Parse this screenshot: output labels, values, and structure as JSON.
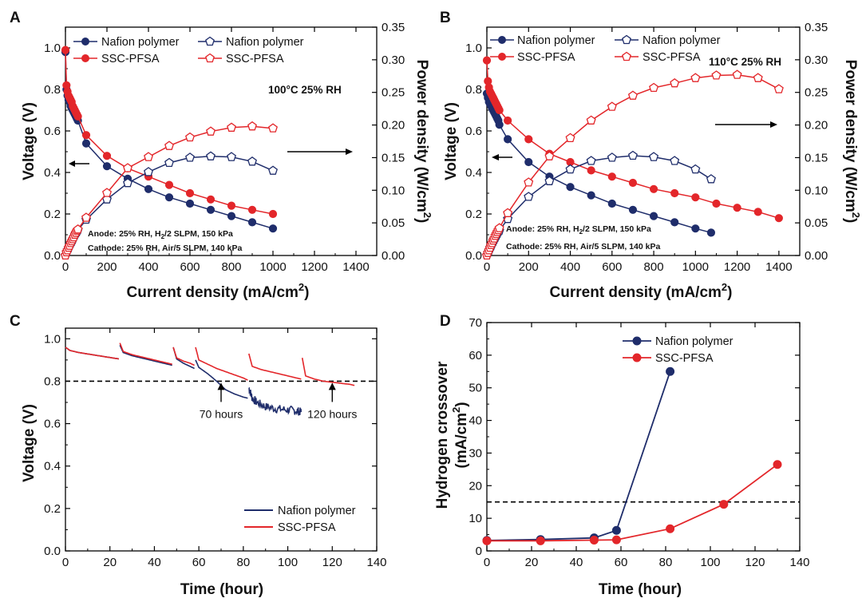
{
  "colors": {
    "nafion": "#1f2d6b",
    "ssc": "#e3262a",
    "axis": "#000000"
  },
  "chart_data": [
    {
      "panel": "A",
      "type": "line",
      "xlabel": "Current density (mA/cm",
      "xlabel_sup": "2",
      "xlabel_end": ")",
      "ylabel": "Voltage (V)",
      "y2label": "Power density (W/cm",
      "y2label_sup": "2",
      "y2label_end": ")",
      "xlim": [
        0,
        1500
      ],
      "ylim": [
        0,
        1.1
      ],
      "y2lim": [
        0,
        0.35
      ],
      "xticks": [
        "0",
        "200",
        "400",
        "600",
        "800",
        "1000",
        "1200",
        "1400"
      ],
      "yticks": [
        "0.0",
        "0.2",
        "0.4",
        "0.6",
        "0.8",
        "1.0"
      ],
      "y2ticks": [
        "0.00",
        "0.05",
        "0.10",
        "0.15",
        "0.20",
        "0.25",
        "0.30",
        "0.35"
      ],
      "condition": "100°C 25% RH",
      "note_anode": "Anode: 25% RH, H",
      "note_anode_sub": "2",
      "note_anode_end": "/2 SLPM, 150 kPa",
      "note_cathode": "Cathode: 25% RH, Air/5 SLPM, 140 kPa",
      "legend": {
        "voltage_nafion": "Nafion polymer",
        "voltage_ssc": "SSC-PFSA",
        "power_nafion": "Nafion polymer",
        "power_ssc": "SSC-PFSA"
      },
      "series": [
        {
          "name": "Nafion polymer",
          "kind": "voltage",
          "x": [
            0,
            5,
            10,
            15,
            20,
            25,
            30,
            35,
            40,
            45,
            50,
            55,
            60,
            100,
            200,
            300,
            400,
            500,
            600,
            700,
            800,
            900,
            1000
          ],
          "values": [
            0.98,
            0.8,
            0.77,
            0.75,
            0.74,
            0.72,
            0.71,
            0.7,
            0.69,
            0.68,
            0.67,
            0.66,
            0.65,
            0.54,
            0.43,
            0.37,
            0.32,
            0.28,
            0.25,
            0.22,
            0.19,
            0.16,
            0.13
          ]
        },
        {
          "name": "SSC-PFSA",
          "kind": "voltage",
          "x": [
            0,
            5,
            10,
            15,
            20,
            25,
            30,
            35,
            40,
            45,
            50,
            55,
            60,
            100,
            200,
            300,
            400,
            500,
            600,
            700,
            800,
            900,
            1000
          ],
          "values": [
            0.99,
            0.82,
            0.79,
            0.77,
            0.76,
            0.75,
            0.74,
            0.72,
            0.71,
            0.7,
            0.69,
            0.68,
            0.67,
            0.58,
            0.48,
            0.42,
            0.38,
            0.34,
            0.3,
            0.27,
            0.24,
            0.22,
            0.2
          ]
        },
        {
          "name": "Nafion polymer",
          "kind": "power",
          "x": [
            0,
            5,
            10,
            15,
            20,
            25,
            30,
            35,
            40,
            45,
            50,
            55,
            60,
            100,
            200,
            300,
            400,
            500,
            600,
            700,
            800,
            900,
            1000
          ],
          "values": [
            0.0,
            0.005,
            0.008,
            0.011,
            0.015,
            0.018,
            0.021,
            0.024,
            0.028,
            0.031,
            0.034,
            0.036,
            0.039,
            0.055,
            0.086,
            0.111,
            0.128,
            0.142,
            0.15,
            0.152,
            0.151,
            0.144,
            0.13
          ]
        },
        {
          "name": "SSC-PFSA",
          "kind": "power",
          "x": [
            0,
            5,
            10,
            15,
            20,
            25,
            30,
            35,
            40,
            45,
            50,
            55,
            60,
            100,
            200,
            300,
            400,
            500,
            600,
            700,
            800,
            900,
            1000
          ],
          "values": [
            0.0,
            0.005,
            0.008,
            0.012,
            0.015,
            0.019,
            0.022,
            0.025,
            0.028,
            0.032,
            0.035,
            0.038,
            0.04,
            0.058,
            0.096,
            0.134,
            0.151,
            0.168,
            0.181,
            0.19,
            0.196,
            0.198,
            0.195
          ]
        }
      ]
    },
    {
      "panel": "B",
      "type": "line",
      "xlabel": "Current density (mA/cm",
      "xlabel_sup": "2",
      "xlabel_end": ")",
      "ylabel": "Voltage (V)",
      "y2label": "Power density (W/cm",
      "y2label_sup": "2",
      "y2label_end": ")",
      "xlim": [
        0,
        1500
      ],
      "ylim": [
        0,
        1.1
      ],
      "y2lim": [
        0,
        0.35
      ],
      "xticks": [
        "0",
        "200",
        "400",
        "600",
        "800",
        "1000",
        "1200",
        "1400"
      ],
      "yticks": [
        "0.0",
        "0.2",
        "0.4",
        "0.6",
        "0.8",
        "1.0"
      ],
      "y2ticks": [
        "0.00",
        "0.05",
        "0.10",
        "0.15",
        "0.20",
        "0.25",
        "0.30",
        "0.35"
      ],
      "condition": "110°C 25% RH",
      "note_anode": "Anode: 25% RH, H",
      "note_anode_sub": "2",
      "note_anode_end": "/2 SLPM, 150 kPa",
      "note_cathode": "Cathode: 25% RH, Air/5 SLPM, 140 kPa",
      "legend": {
        "voltage_nafion": "Nafion polymer",
        "voltage_ssc": "SSC-PFSA",
        "power_nafion": "Nafion polymer",
        "power_ssc": "SSC-PFSA"
      },
      "series": [
        {
          "name": "Nafion polymer",
          "kind": "voltage",
          "x": [
            0,
            5,
            10,
            15,
            20,
            25,
            30,
            35,
            40,
            45,
            50,
            55,
            60,
            100,
            200,
            300,
            400,
            500,
            600,
            700,
            800,
            900,
            1000,
            1075
          ],
          "values": [
            0.78,
            0.76,
            0.74,
            0.73,
            0.72,
            0.71,
            0.7,
            0.69,
            0.68,
            0.67,
            0.66,
            0.65,
            0.63,
            0.56,
            0.45,
            0.38,
            0.33,
            0.29,
            0.25,
            0.22,
            0.19,
            0.16,
            0.13,
            0.11
          ]
        },
        {
          "name": "SSC-PFSA",
          "kind": "voltage",
          "x": [
            0,
            5,
            10,
            15,
            20,
            25,
            30,
            35,
            40,
            45,
            50,
            55,
            60,
            100,
            200,
            300,
            400,
            500,
            600,
            700,
            800,
            900,
            1000,
            1100,
            1200,
            1300,
            1400
          ],
          "values": [
            0.94,
            0.84,
            0.81,
            0.79,
            0.78,
            0.77,
            0.76,
            0.75,
            0.74,
            0.73,
            0.72,
            0.71,
            0.7,
            0.65,
            0.56,
            0.49,
            0.45,
            0.41,
            0.38,
            0.35,
            0.32,
            0.3,
            0.28,
            0.25,
            0.23,
            0.21,
            0.18
          ]
        },
        {
          "name": "Nafion polymer",
          "kind": "power",
          "x": [
            0,
            5,
            10,
            15,
            20,
            25,
            30,
            35,
            40,
            45,
            50,
            55,
            60,
            100,
            200,
            300,
            400,
            500,
            600,
            700,
            800,
            900,
            1000,
            1075
          ],
          "values": [
            0.0,
            0.004,
            0.007,
            0.011,
            0.014,
            0.018,
            0.021,
            0.024,
            0.027,
            0.03,
            0.033,
            0.036,
            0.038,
            0.056,
            0.09,
            0.114,
            0.132,
            0.145,
            0.15,
            0.153,
            0.151,
            0.145,
            0.132,
            0.117
          ]
        },
        {
          "name": "SSC-PFSA",
          "kind": "power",
          "x": [
            0,
            5,
            10,
            15,
            20,
            25,
            30,
            35,
            40,
            45,
            50,
            55,
            60,
            100,
            200,
            300,
            400,
            500,
            600,
            700,
            800,
            900,
            1000,
            1100,
            1200,
            1300,
            1400
          ],
          "values": [
            0.0,
            0.004,
            0.008,
            0.012,
            0.016,
            0.019,
            0.023,
            0.026,
            0.03,
            0.033,
            0.036,
            0.039,
            0.042,
            0.065,
            0.112,
            0.152,
            0.18,
            0.207,
            0.228,
            0.245,
            0.257,
            0.264,
            0.272,
            0.276,
            0.277,
            0.272,
            0.255
          ]
        }
      ]
    },
    {
      "panel": "C",
      "type": "line",
      "xlabel": "Time (hour)",
      "ylabel": "Voltage (V)",
      "xlim": [
        0,
        140
      ],
      "ylim": [
        0,
        1.05
      ],
      "xticks": [
        "0",
        "20",
        "40",
        "60",
        "80",
        "100",
        "120",
        "140"
      ],
      "yticks": [
        "0.0",
        "0.2",
        "0.4",
        "0.6",
        "0.8",
        "1.0"
      ],
      "threshold": 0.8,
      "annotations": [
        {
          "label": "70 hours",
          "x": 70
        },
        {
          "label": "120 hours",
          "x": 120
        }
      ],
      "legend": {
        "nafion": "Nafion polymer",
        "ssc": "SSC-PFSA"
      },
      "series": [
        {
          "name": "Nafion polymer",
          "segments": [
            {
              "x": [
                0,
                2,
                6,
                12,
                18,
                24
              ],
              "values": [
                0.96,
                0.945,
                0.935,
                0.925,
                0.915,
                0.905
              ]
            },
            {
              "x": [
                24.5,
                26,
                30,
                36,
                42,
                48
              ],
              "values": [
                0.97,
                0.935,
                0.92,
                0.905,
                0.89,
                0.875
              ]
            },
            {
              "x": [
                48.5,
                50,
                53,
                56,
                58
              ],
              "values": [
                0.96,
                0.905,
                0.885,
                0.87,
                0.86
              ]
            },
            {
              "x": [
                58.5,
                60,
                64,
                68,
                72,
                76,
                80,
                82
              ],
              "values": [
                0.9,
                0.865,
                0.835,
                0.8,
                0.76,
                0.74,
                0.725,
                0.72
              ]
            },
            {
              "x": [
                82.5,
                84,
                86,
                90,
                95,
                100,
                104,
                106
              ],
              "values": [
                0.77,
                0.72,
                0.7,
                0.68,
                0.67,
                0.665,
                0.66,
                0.655
              ]
            }
          ],
          "noise_from": 82.5,
          "noise_amp": 0.02
        },
        {
          "name": "SSC-PFSA",
          "segments": [
            {
              "x": [
                0,
                2,
                6,
                12,
                18,
                24
              ],
              "values": [
                0.96,
                0.945,
                0.935,
                0.925,
                0.915,
                0.905
              ]
            },
            {
              "x": [
                24.5,
                26,
                30,
                36,
                42,
                48
              ],
              "values": [
                0.98,
                0.94,
                0.925,
                0.91,
                0.895,
                0.88
              ]
            },
            {
              "x": [
                48.5,
                50,
                53,
                56,
                58
              ],
              "values": [
                0.96,
                0.91,
                0.895,
                0.885,
                0.875
              ]
            },
            {
              "x": [
                58.5,
                60,
                64,
                68,
                72,
                76,
                80,
                82
              ],
              "values": [
                0.96,
                0.9,
                0.88,
                0.86,
                0.845,
                0.83,
                0.815,
                0.805
              ]
            },
            {
              "x": [
                82.5,
                84,
                88,
                92,
                96,
                100,
                104,
                106
              ],
              "values": [
                0.93,
                0.87,
                0.855,
                0.845,
                0.835,
                0.825,
                0.815,
                0.81
              ]
            },
            {
              "x": [
                106.5,
                108,
                112,
                116,
                120,
                124,
                128,
                130
              ],
              "values": [
                0.91,
                0.825,
                0.81,
                0.8,
                0.795,
                0.79,
                0.785,
                0.78
              ]
            }
          ]
        }
      ]
    },
    {
      "panel": "D",
      "type": "line",
      "xlabel": "Time (hour)",
      "ylabel": "Hydrogen crossover",
      "ylabel2": "(mA/cm",
      "ylabel2_sup": "2",
      "ylabel2_end": ")",
      "xlim": [
        0,
        140
      ],
      "ylim": [
        0,
        70
      ],
      "xticks": [
        "0",
        "20",
        "40",
        "60",
        "80",
        "100",
        "120",
        "140"
      ],
      "yticks": [
        "0",
        "10",
        "20",
        "30",
        "40",
        "50",
        "60",
        "70"
      ],
      "threshold": 15,
      "legend": {
        "nafion": "Nafion polymer",
        "ssc": "SSC-PFSA"
      },
      "series": [
        {
          "name": "Nafion polymer",
          "x": [
            0,
            24,
            48,
            58,
            82
          ],
          "values": [
            3.2,
            3.5,
            4.0,
            6.3,
            55
          ]
        },
        {
          "name": "SSC-PFSA",
          "x": [
            0,
            24,
            48,
            58,
            82,
            106,
            130
          ],
          "values": [
            3.1,
            3.1,
            3.3,
            3.4,
            6.8,
            14.3,
            26.5
          ]
        }
      ]
    }
  ],
  "panel_labels": [
    "A",
    "B",
    "C",
    "D"
  ]
}
